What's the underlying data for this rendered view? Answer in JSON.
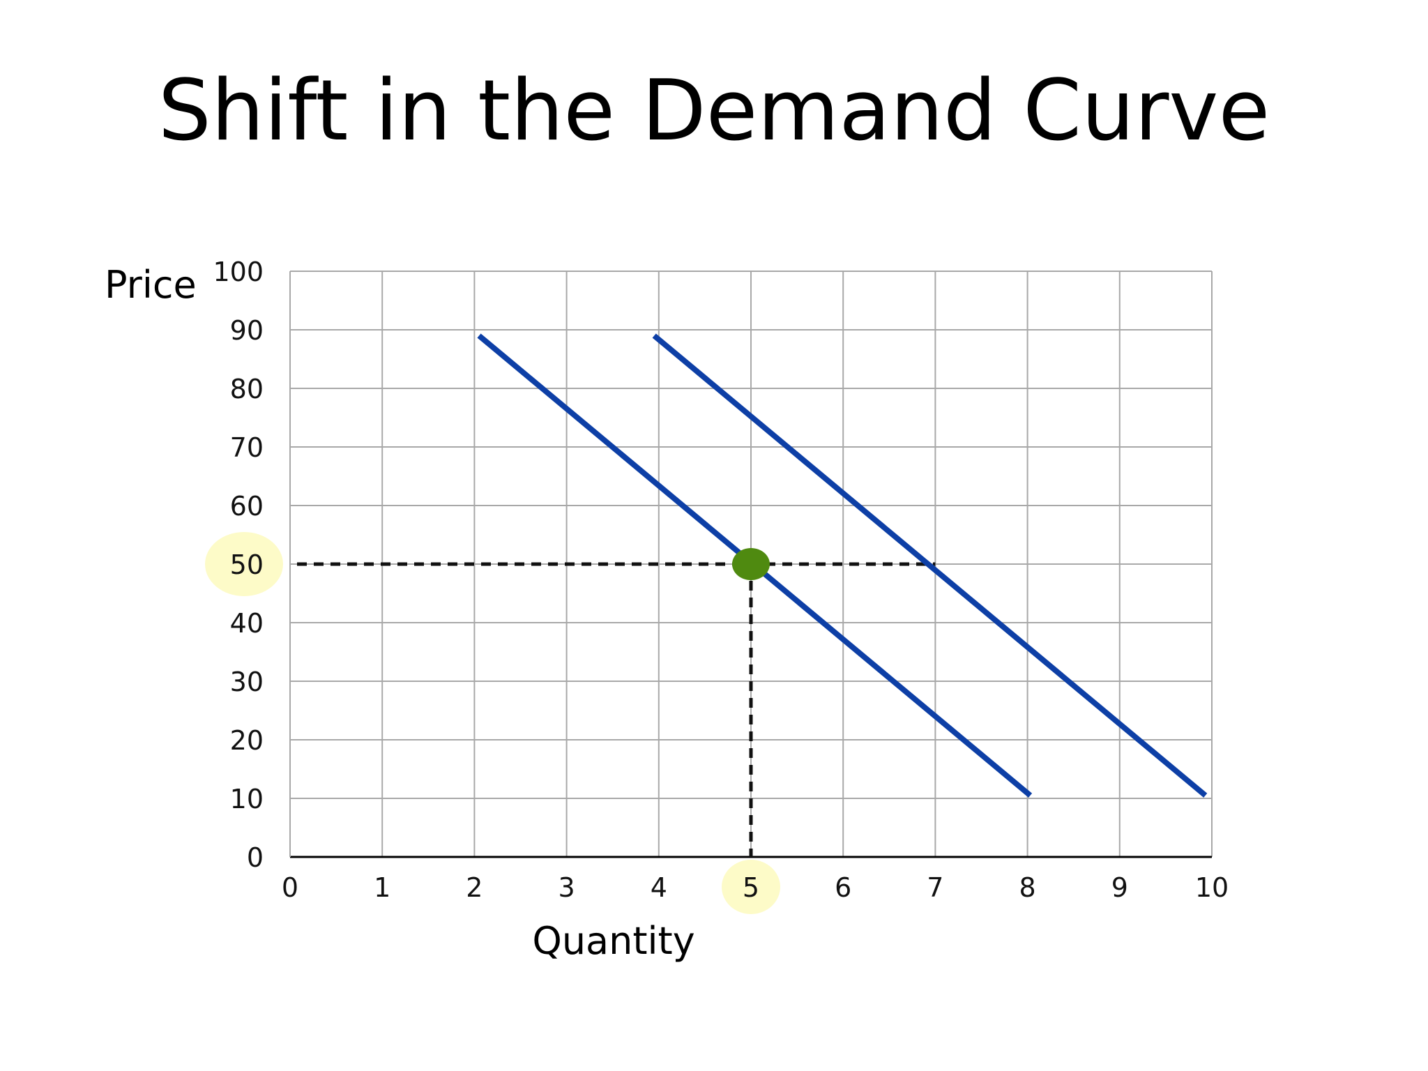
{
  "slide": {
    "title": "Shift in the Demand Curve"
  },
  "chart_data": {
    "type": "line",
    "title": "Shift in the Demand Curve",
    "xlabel": "Quantity",
    "ylabel": "Price",
    "xlim": [
      0,
      10
    ],
    "ylim": [
      0,
      100
    ],
    "x_ticks": [
      "0",
      "1",
      "2",
      "3",
      "4",
      "5",
      "6",
      "7",
      "8",
      "9",
      "10"
    ],
    "y_ticks": [
      "0",
      "10",
      "20",
      "30",
      "40",
      "50",
      "60",
      "70",
      "80",
      "90",
      "100"
    ],
    "grid": true,
    "series": [
      {
        "x": [
          2.05,
          8.03
        ],
        "y": [
          89,
          10.5
        ],
        "color": "#0d3fa6"
      },
      {
        "x": [
          3.95,
          9.93
        ],
        "y": [
          89,
          10.5
        ],
        "color": "#0d3fa6"
      }
    ],
    "reference_lines": [
      {
        "orientation": "horizontal",
        "value": 50,
        "from": 0,
        "to": 7,
        "style": "dashed"
      },
      {
        "orientation": "vertical",
        "value": 5,
        "from": 0,
        "to": 50,
        "style": "dashed"
      }
    ],
    "point": {
      "x": 5,
      "y": 50,
      "color": "#4f8a10"
    },
    "highlights": [
      {
        "axis": "y",
        "value": "50",
        "color": "#fdfbc8"
      },
      {
        "axis": "x",
        "value": "5",
        "color": "#fdfbc8"
      }
    ]
  }
}
